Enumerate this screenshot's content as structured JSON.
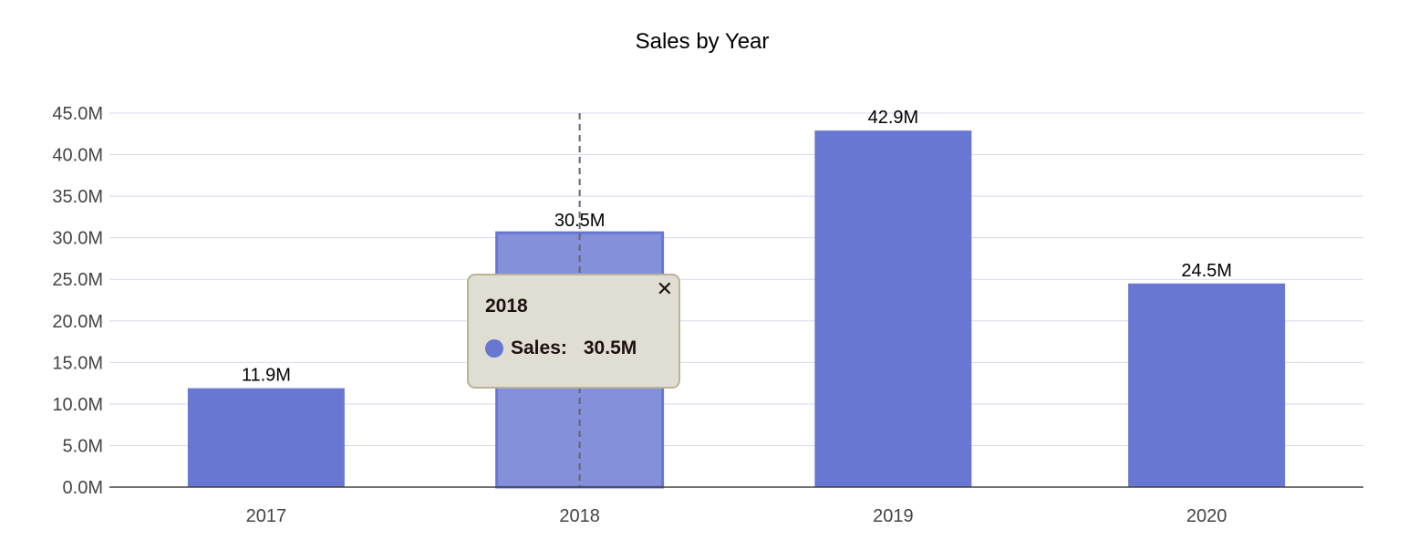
{
  "chart_data": {
    "type": "bar",
    "title": "Sales by Year",
    "categories": [
      "2017",
      "2018",
      "2019",
      "2020"
    ],
    "series": [
      {
        "name": "Sales",
        "values": [
          11.9,
          30.5,
          42.9,
          24.5
        ]
      }
    ],
    "value_unit": "M",
    "data_labels": [
      "11.9M",
      "30.5M",
      "42.9M",
      "24.5M"
    ],
    "yticks": [
      "0.0M",
      "5.0M",
      "10.0M",
      "15.0M",
      "20.0M",
      "25.0M",
      "30.0M",
      "35.0M",
      "40.0M",
      "45.0M"
    ],
    "ylim": [
      0,
      45
    ],
    "grid": true,
    "highlighted_category": "2018",
    "colors": {
      "bar": "#6877d1",
      "bar_highlight": "#8590db",
      "grid": "#d5d9ef",
      "axis": "#444444"
    }
  },
  "tooltip": {
    "title": "2018",
    "label": "Sales:",
    "value": "30.5M",
    "close_icon": "close-icon"
  }
}
